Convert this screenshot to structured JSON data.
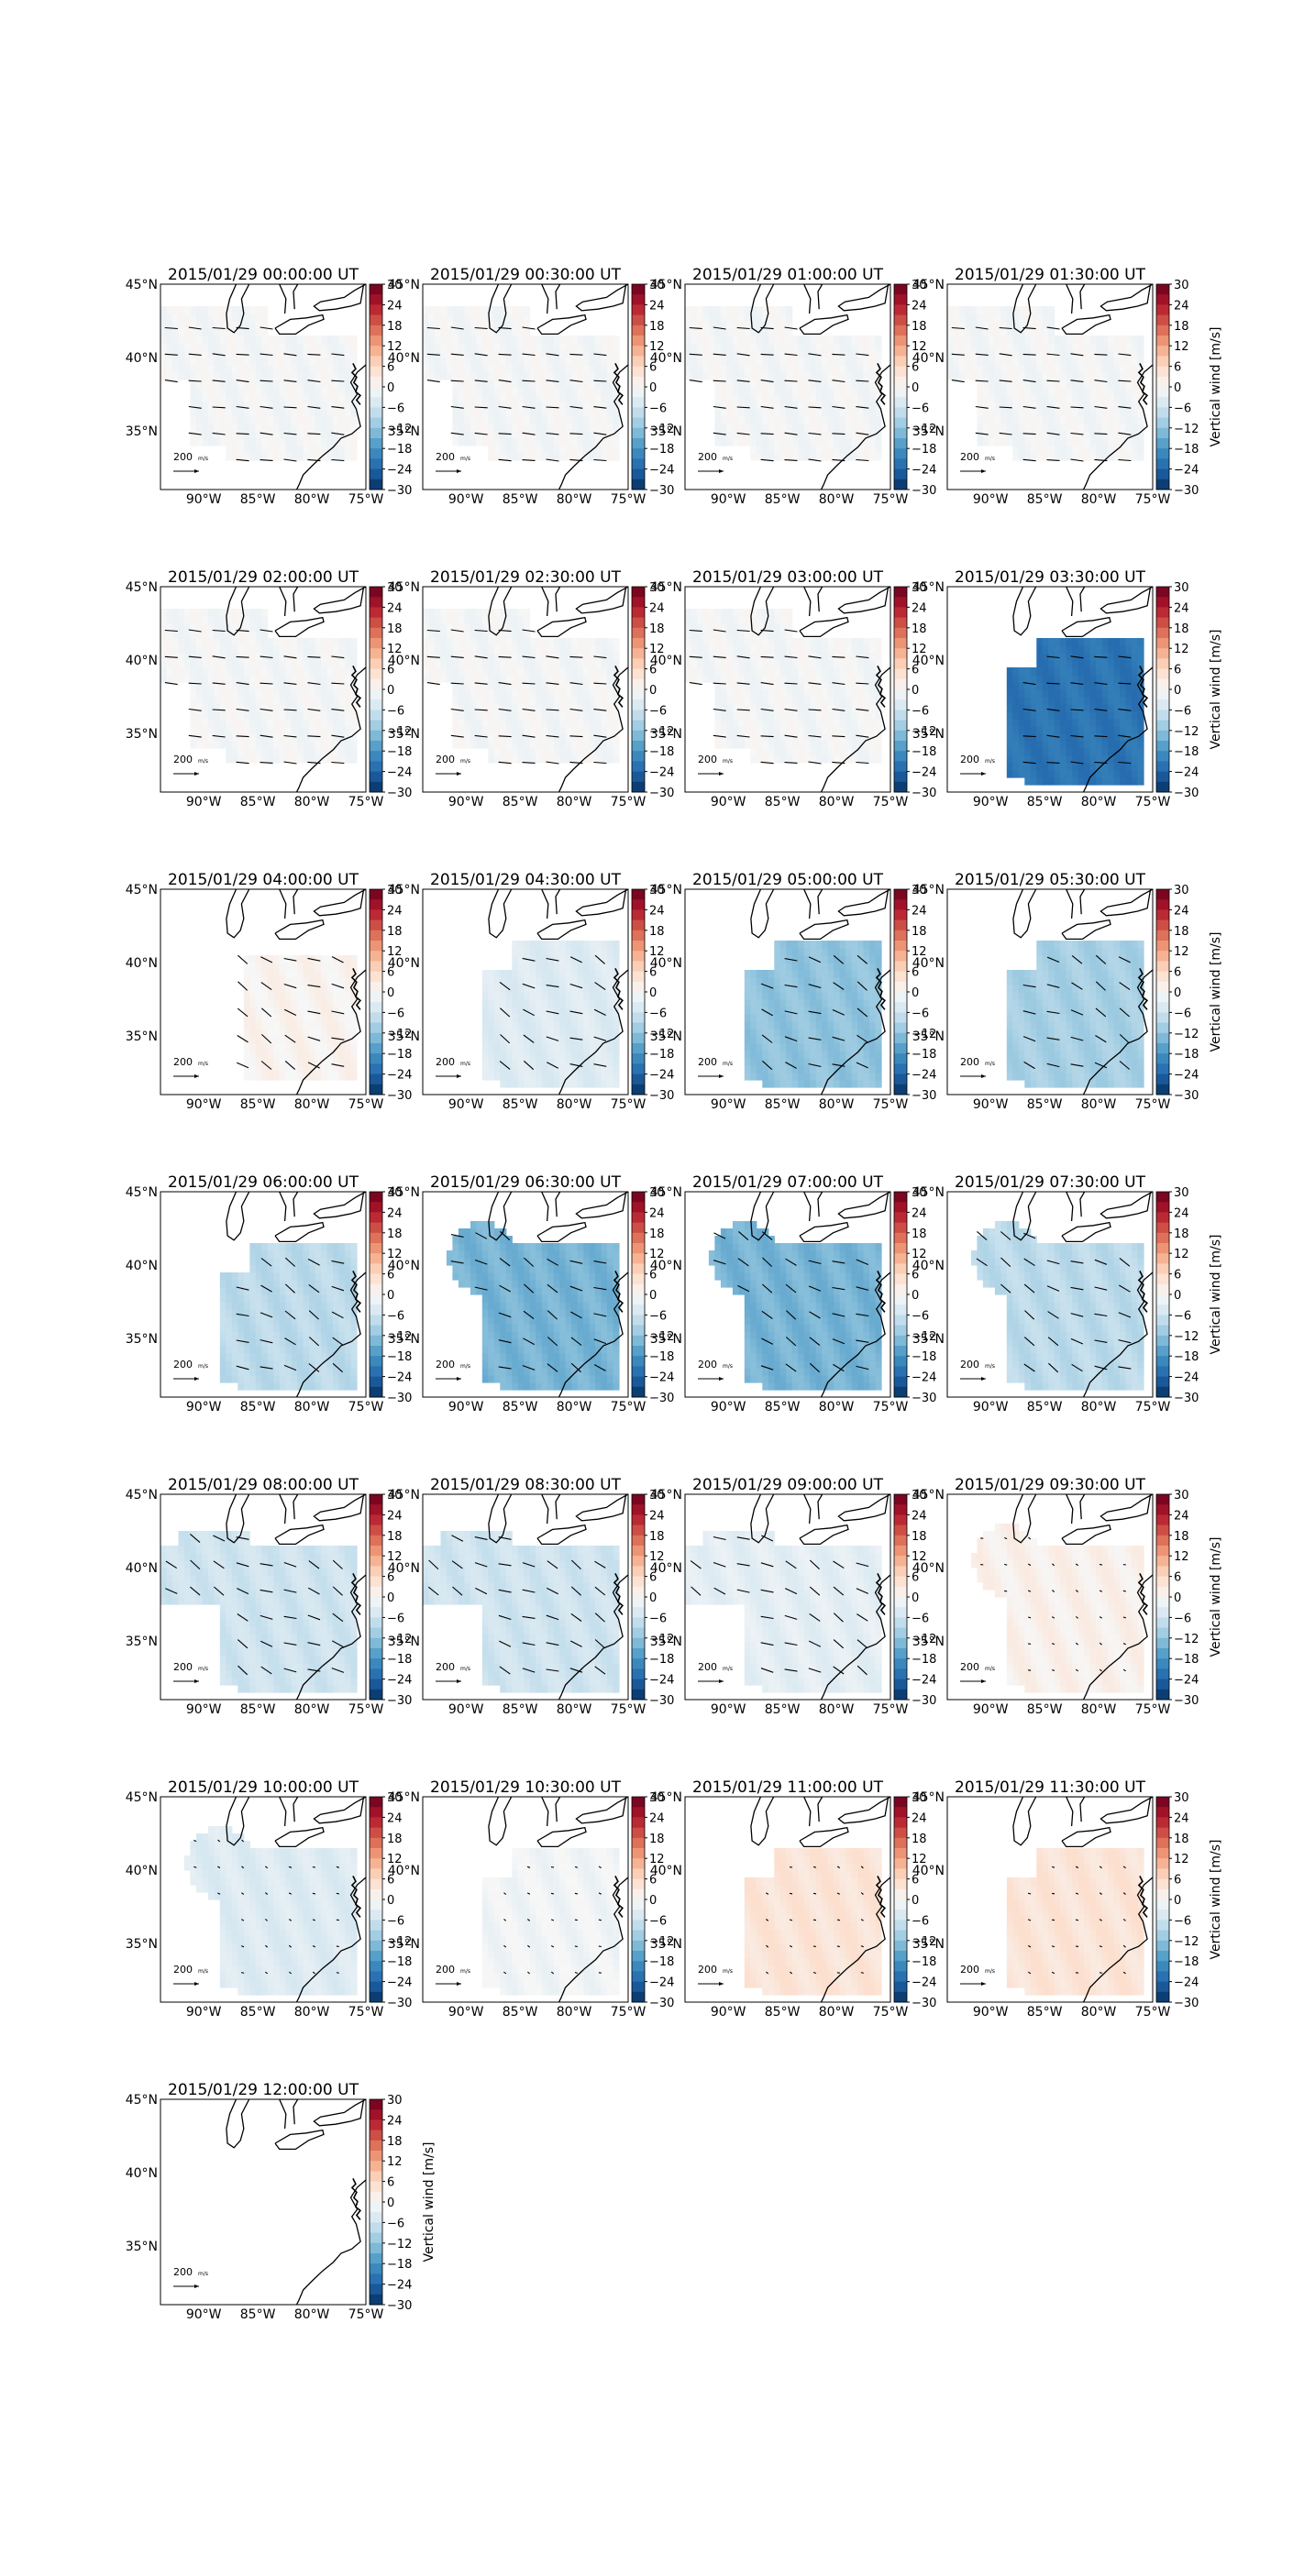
{
  "figure": {
    "layout": {
      "rows": 7,
      "cols": 4
    },
    "colorbar": {
      "label": "Vertical wind [m/s]",
      "ticks": [
        "30",
        "24",
        "18",
        "12",
        "6",
        "0",
        "−6",
        "−12",
        "−18",
        "−24",
        "−30"
      ],
      "range": [
        -30,
        30
      ],
      "cmap": "RdBu_r"
    },
    "map": {
      "lon_ticks": [
        "90°W",
        "85°W",
        "80°W",
        "75°W"
      ],
      "lat_ticks": [
        "45°N",
        "40°N",
        "35°N"
      ],
      "lon_range": [
        -94,
        -75
      ],
      "lat_range": [
        31,
        45
      ]
    },
    "reference_vector": {
      "value": "200",
      "units": "m/s"
    }
  },
  "chart_data": [
    {
      "type": "heatmap",
      "title": "2015/01/29 00:00:00 UT",
      "mean_vertical_wind": -0.5,
      "region": "wide"
    },
    {
      "type": "heatmap",
      "title": "2015/01/29 00:30:00 UT",
      "mean_vertical_wind": -0.5,
      "region": "wide"
    },
    {
      "type": "heatmap",
      "title": "2015/01/29 01:00:00 UT",
      "mean_vertical_wind": -0.5,
      "region": "wide"
    },
    {
      "type": "heatmap",
      "title": "2015/01/29 01:30:00 UT",
      "mean_vertical_wind": -0.5,
      "region": "wide"
    },
    {
      "type": "heatmap",
      "title": "2015/01/29 02:00:00 UT",
      "mean_vertical_wind": -0.5,
      "region": "wide"
    },
    {
      "type": "heatmap",
      "title": "2015/01/29 02:30:00 UT",
      "mean_vertical_wind": -0.5,
      "region": "wide"
    },
    {
      "type": "heatmap",
      "title": "2015/01/29 03:00:00 UT",
      "mean_vertical_wind": -0.5,
      "region": "wide"
    },
    {
      "type": "heatmap",
      "title": "2015/01/29 03:30:00 UT",
      "mean_vertical_wind": -22,
      "region": "southeast"
    },
    {
      "type": "heatmap",
      "title": "2015/01/29 04:00:00 UT",
      "mean_vertical_wind": 1,
      "region": "southeast_small"
    },
    {
      "type": "heatmap",
      "title": "2015/01/29 04:30:00 UT",
      "mean_vertical_wind": -4,
      "region": "southeast"
    },
    {
      "type": "heatmap",
      "title": "2015/01/29 05:00:00 UT",
      "mean_vertical_wind": -12,
      "region": "southeast"
    },
    {
      "type": "heatmap",
      "title": "2015/01/29 05:30:00 UT",
      "mean_vertical_wind": -10,
      "region": "southeast"
    },
    {
      "type": "heatmap",
      "title": "2015/01/29 06:00:00 UT",
      "mean_vertical_wind": -8,
      "region": "southeast"
    },
    {
      "type": "heatmap",
      "title": "2015/01/29 06:30:00 UT",
      "mean_vertical_wind": -14,
      "region": "southeast_plus_northwest"
    },
    {
      "type": "heatmap",
      "title": "2015/01/29 07:00:00 UT",
      "mean_vertical_wind": -14,
      "region": "southeast_plus_northwest"
    },
    {
      "type": "heatmap",
      "title": "2015/01/29 07:30:00 UT",
      "mean_vertical_wind": -8,
      "region": "southeast_plus_northwest"
    },
    {
      "type": "heatmap",
      "title": "2015/01/29 08:00:00 UT",
      "mean_vertical_wind": -6,
      "region": "v_shape"
    },
    {
      "type": "heatmap",
      "title": "2015/01/29 08:30:00 UT",
      "mean_vertical_wind": -6,
      "region": "v_shape"
    },
    {
      "type": "heatmap",
      "title": "2015/01/29 09:00:00 UT",
      "mean_vertical_wind": -3,
      "region": "v_shape"
    },
    {
      "type": "heatmap",
      "title": "2015/01/29 09:30:00 UT",
      "mean_vertical_wind": 1.5,
      "region": "southeast_plus_northwest"
    },
    {
      "type": "heatmap",
      "title": "2015/01/29 10:00:00 UT",
      "mean_vertical_wind": -4,
      "region": "southeast_plus_northwest"
    },
    {
      "type": "heatmap",
      "title": "2015/01/29 10:30:00 UT",
      "mean_vertical_wind": -1,
      "region": "southeast"
    },
    {
      "type": "heatmap",
      "title": "2015/01/29 11:00:00 UT",
      "mean_vertical_wind": 4,
      "region": "southeast"
    },
    {
      "type": "heatmap",
      "title": "2015/01/29 11:30:00 UT",
      "mean_vertical_wind": 4,
      "region": "southeast"
    },
    {
      "type": "heatmap",
      "title": "2015/01/29 12:00:00 UT",
      "mean_vertical_wind": null,
      "region": "none"
    }
  ]
}
